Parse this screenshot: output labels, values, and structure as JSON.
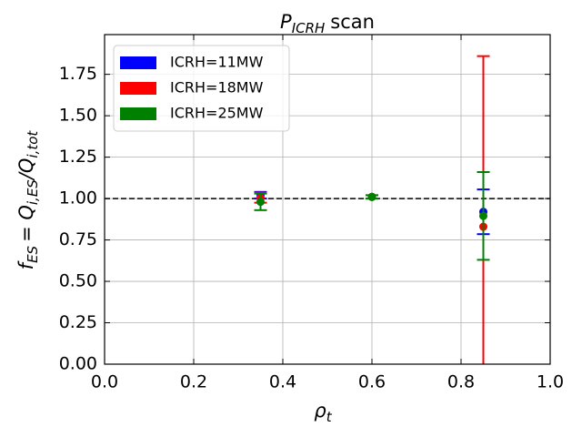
{
  "chart_data": {
    "type": "errorbar",
    "title_parts": [
      "P",
      "ICRH",
      "scan"
    ],
    "x_label_parts": [
      "ρ",
      "t"
    ],
    "y_label_parts": [
      "f",
      "ES",
      "= Q",
      "i,ES",
      "/Q",
      "i,tot"
    ],
    "xlim": [
      0,
      1
    ],
    "ylim": [
      0,
      1.99
    ],
    "xticks": [
      {
        "value": 0,
        "label": "0.0"
      },
      0.2,
      0.4,
      0.6,
      0.8,
      {
        "value": 1,
        "label": "1.0"
      }
    ],
    "yticks": [
      {
        "value": 0,
        "label": "0.00"
      },
      {
        "value": 0.25,
        "label": "0.25"
      },
      {
        "value": 0.5,
        "label": "0.50"
      },
      {
        "value": 0.75,
        "label": "0.75"
      },
      {
        "value": 1,
        "label": "1.00"
      },
      {
        "value": 1.25,
        "label": "1.25"
      },
      {
        "value": 1.5,
        "label": "1.50"
      },
      {
        "value": 1.75,
        "label": "1.75"
      }
    ],
    "grid": true,
    "legend": "upper left",
    "hline": 1,
    "series": [
      {
        "name": "ICRH=11MW",
        "color": "#0000ff",
        "x": [
          0.35,
          0.6,
          0.85
        ],
        "values": [
          1.02,
          1.01,
          0.92
        ],
        "errors": [
          0.02,
          0.01,
          0.135
        ]
      },
      {
        "name": "ICRH=18MW",
        "color": "#ff0000",
        "x": [
          0.35,
          0.6,
          0.85
        ],
        "values": [
          1.005,
          1.01,
          0.83
        ],
        "errors": [
          0.03,
          0.01,
          1.03
        ]
      },
      {
        "name": "ICRH=25MW",
        "color": "#008000",
        "x": [
          0.35,
          0.6,
          0.85
        ],
        "values": [
          0.98,
          1.01,
          0.895
        ],
        "errors": [
          0.05,
          0.01,
          0.265
        ]
      }
    ]
  }
}
